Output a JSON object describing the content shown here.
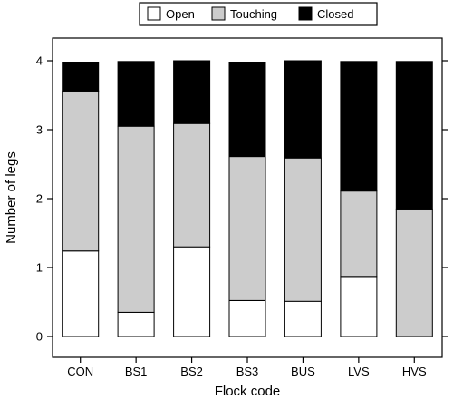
{
  "chart_data": {
    "type": "bar",
    "stacked": true,
    "xlabel": "Flock code",
    "ylabel": "Number of legs",
    "ylim": [
      0,
      4.35
    ],
    "yticks": [
      0,
      1,
      2,
      3,
      4
    ],
    "legend_position": "top-center",
    "categories": [
      "CON",
      "BS1",
      "BS2",
      "BS3",
      "BUS",
      "LVS",
      "HVS"
    ],
    "series": [
      {
        "name": "Open",
        "color": "#ffffff",
        "values": [
          1.24,
          0.35,
          1.3,
          0.52,
          0.51,
          0.87,
          0.0
        ]
      },
      {
        "name": "Touching",
        "color": "#cccccc",
        "values": [
          2.32,
          2.7,
          1.79,
          2.09,
          2.08,
          1.24,
          1.85
        ]
      },
      {
        "name": "Closed",
        "color": "#000000",
        "values": [
          0.42,
          0.94,
          0.91,
          1.37,
          1.41,
          1.88,
          2.14
        ]
      }
    ]
  }
}
